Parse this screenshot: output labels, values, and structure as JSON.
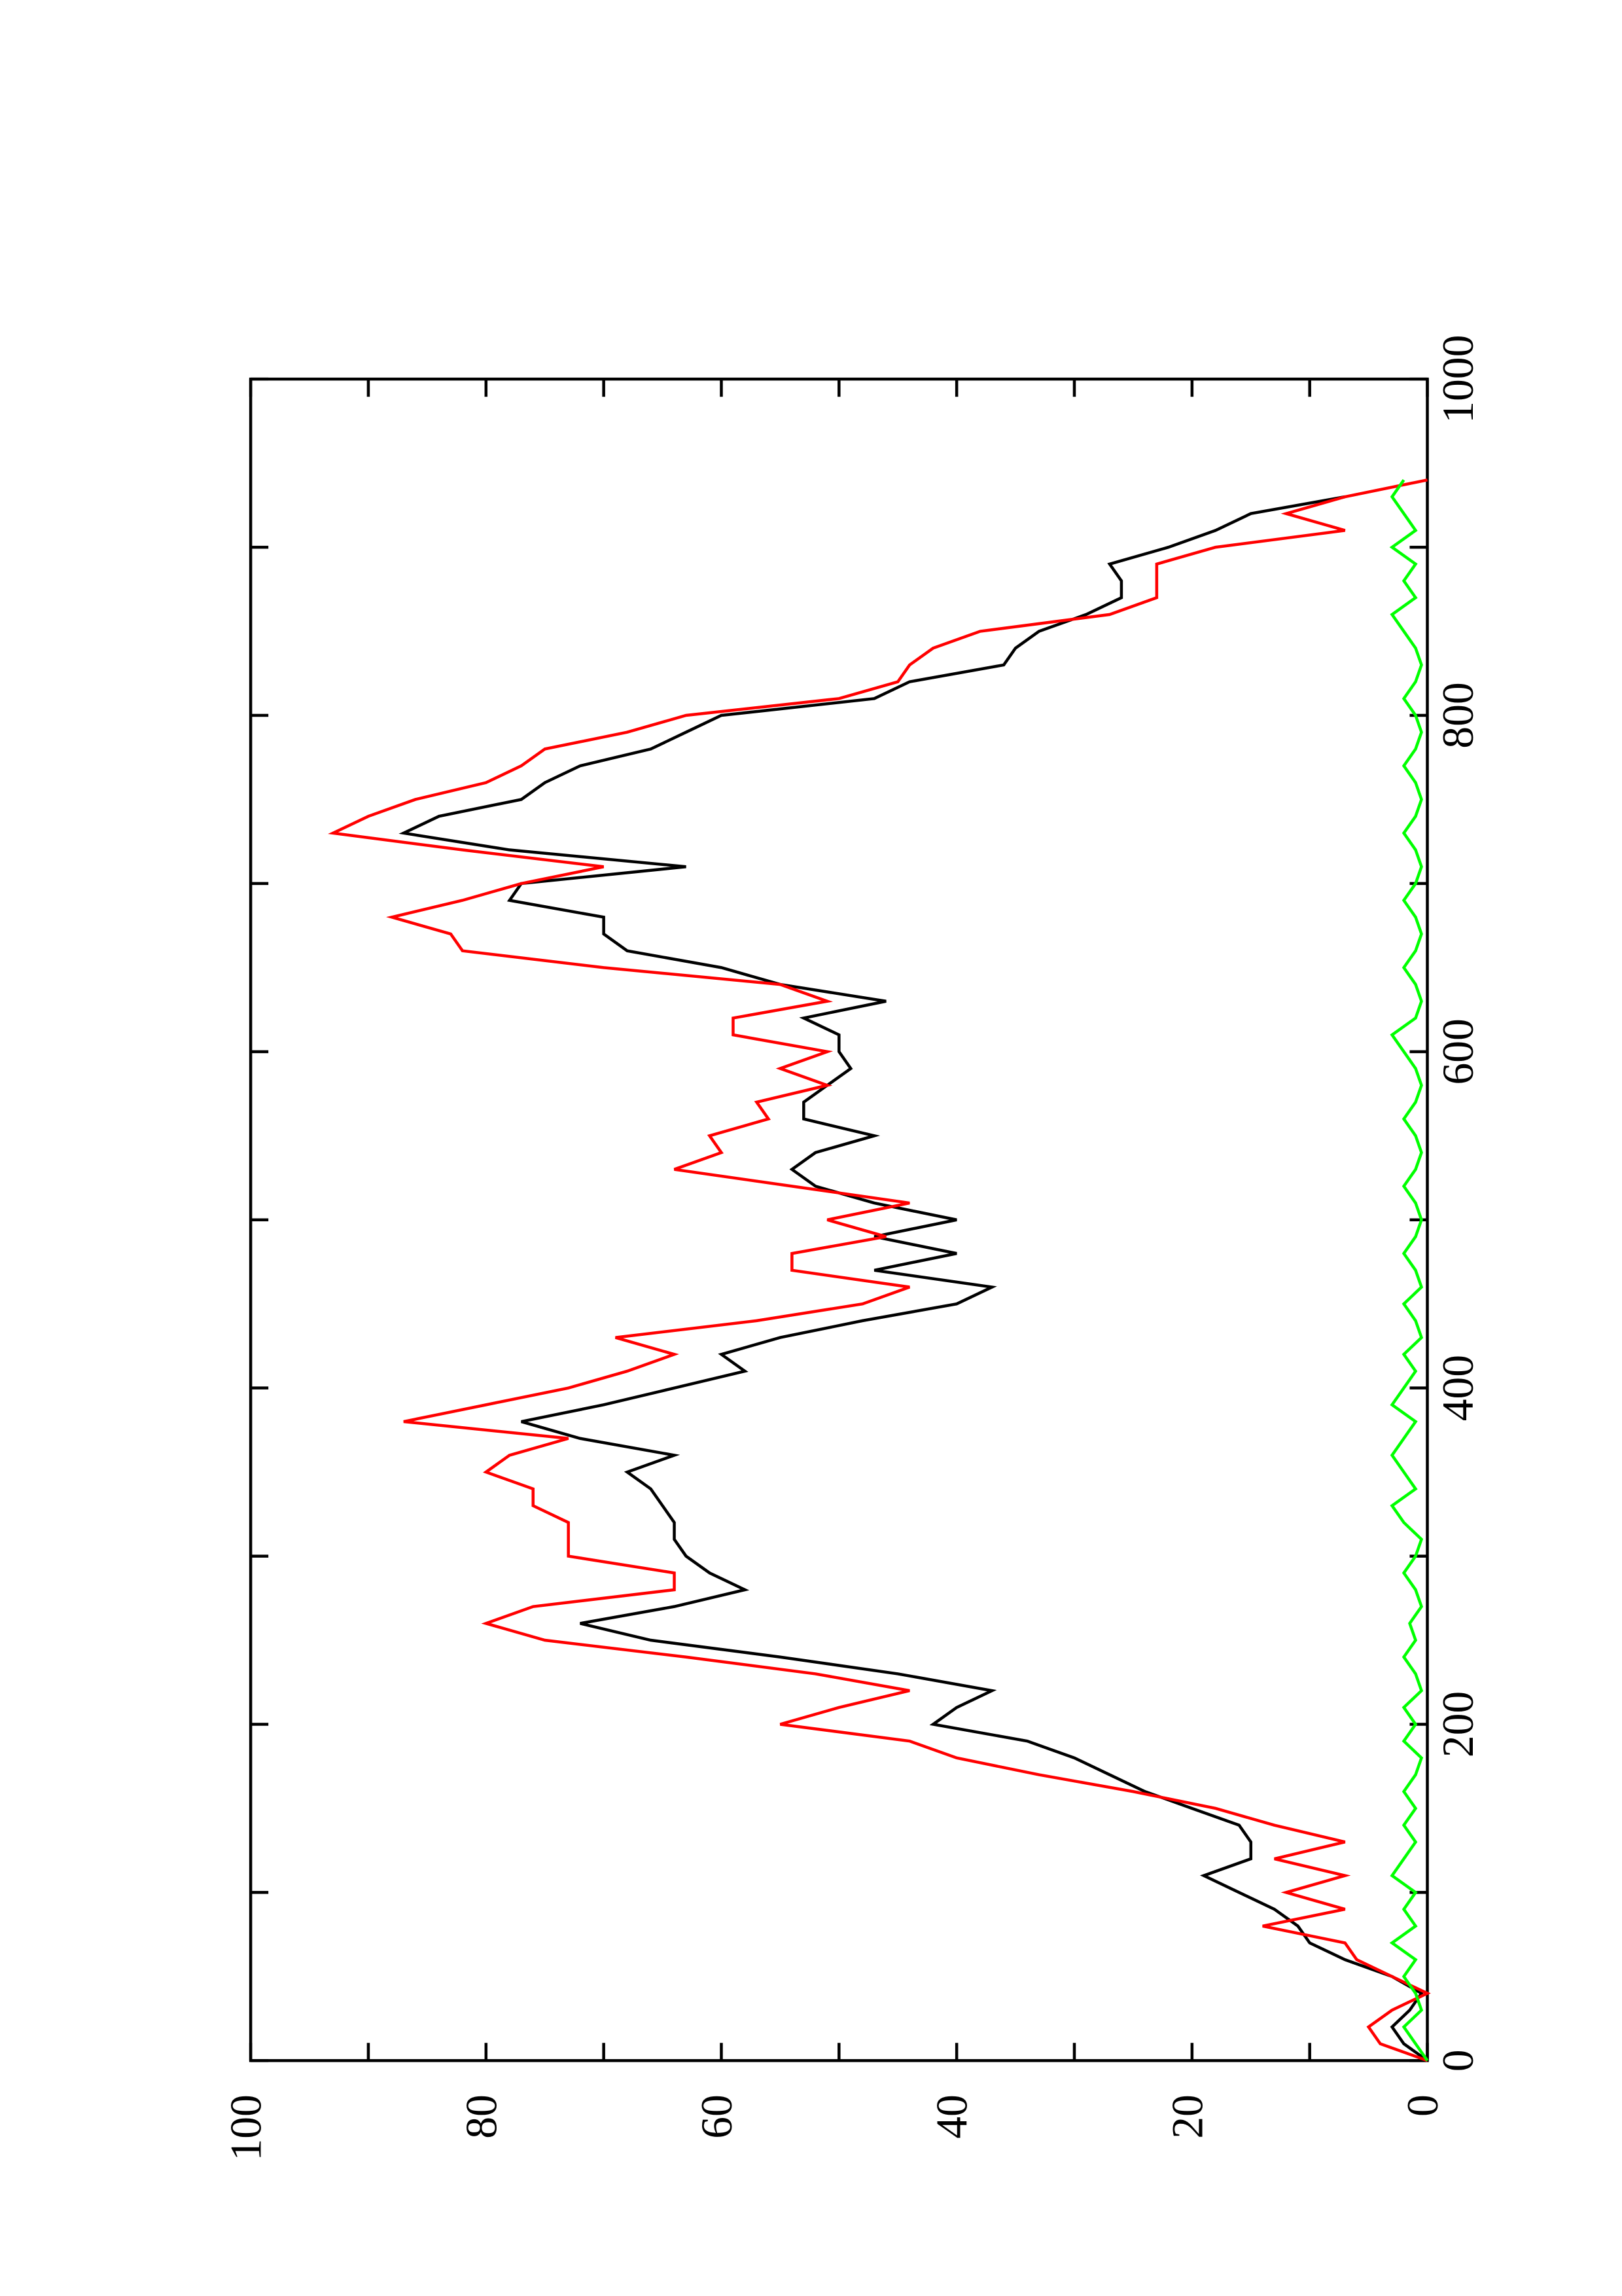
{
  "chart_data": {
    "type": "line",
    "x": [
      0,
      10,
      20,
      30,
      40,
      50,
      60,
      70,
      80,
      90,
      100,
      110,
      120,
      130,
      140,
      150,
      160,
      170,
      180,
      190,
      200,
      210,
      220,
      230,
      240,
      250,
      260,
      270,
      280,
      290,
      300,
      310,
      320,
      330,
      340,
      350,
      360,
      370,
      380,
      390,
      400,
      410,
      420,
      430,
      440,
      450,
      460,
      470,
      480,
      490,
      500,
      510,
      520,
      530,
      540,
      550,
      560,
      570,
      580,
      590,
      600,
      610,
      620,
      630,
      640,
      650,
      660,
      670,
      680,
      690,
      700,
      710,
      720,
      730,
      740,
      750,
      760,
      770,
      780,
      790,
      800,
      810,
      820,
      830,
      840,
      850,
      860,
      870,
      880,
      890,
      900,
      910,
      920,
      930,
      940
    ],
    "series": [
      {
        "color": "#000000",
        "values": [
          0,
          2,
          3,
          1.5,
          0.5,
          3,
          7,
          10,
          11,
          13,
          16,
          19,
          15,
          15,
          16,
          20,
          24,
          27,
          30,
          34,
          42,
          40,
          37,
          45,
          55,
          66,
          72,
          64,
          58,
          61,
          63,
          64,
          64,
          65,
          66,
          68,
          64,
          72,
          77,
          70,
          64,
          58,
          60,
          55,
          48,
          40,
          37,
          47,
          40,
          47,
          40,
          47,
          52,
          54,
          52,
          47,
          53,
          53,
          51,
          49,
          50,
          50,
          53,
          46,
          55,
          60,
          68,
          70,
          70,
          78,
          77,
          63,
          78,
          87,
          84,
          77,
          75,
          72,
          66,
          63,
          60,
          47,
          44,
          36,
          35,
          33,
          29,
          26,
          26,
          27,
          22,
          18,
          15,
          7,
          null
        ]
      },
      {
        "color": "#ff0000",
        "values": [
          0,
          4,
          5,
          3,
          0,
          3,
          6,
          7,
          14,
          7,
          12,
          7,
          13,
          7,
          13,
          18,
          25,
          33,
          40,
          44,
          55,
          50,
          44,
          52,
          63,
          75,
          80,
          76,
          64,
          64,
          73,
          73,
          73,
          76,
          76,
          80,
          78,
          73,
          87,
          80,
          73,
          68,
          64,
          69,
          57,
          48,
          44,
          54,
          54,
          46,
          51,
          44,
          54,
          64,
          60,
          61,
          56,
          57,
          51,
          55,
          51,
          59,
          59,
          51,
          55,
          70,
          82,
          83,
          88,
          82,
          77,
          70,
          82,
          93,
          90,
          86,
          80,
          77,
          75,
          68,
          63,
          50,
          45,
          44,
          42,
          38,
          27,
          23,
          23,
          23,
          18,
          7,
          12,
          7,
          0
        ]
      },
      {
        "color": "#00ff00",
        "values": [
          0,
          1,
          2,
          0.5,
          1,
          2,
          1,
          3,
          1,
          2,
          1,
          3,
          2,
          1,
          2,
          1,
          2,
          1,
          0.5,
          2,
          1,
          2,
          0.5,
          1,
          2,
          1,
          1.5,
          0.5,
          1,
          2,
          1,
          0.5,
          2,
          3,
          1,
          2,
          3,
          2,
          1,
          3,
          2,
          1,
          2,
          0.5,
          1,
          2,
          0.5,
          1,
          2,
          1,
          0.5,
          1,
          2,
          1,
          0.5,
          1,
          2,
          1,
          0.5,
          1,
          2,
          3,
          1,
          0.5,
          1,
          2,
          1,
          0.5,
          1,
          2,
          1,
          0.5,
          1,
          2,
          1,
          0.5,
          1,
          2,
          1,
          0.5,
          1,
          2,
          1,
          0.5,
          1,
          2,
          3,
          1,
          2,
          1,
          3,
          1,
          2,
          3,
          2
        ]
      }
    ],
    "xlim": [
      0,
      1000
    ],
    "xticks": [
      0,
      200,
      400,
      600,
      800,
      1000
    ],
    "x_minor_ticks": [
      100,
      300,
      500,
      700,
      900
    ],
    "ylim": [
      0,
      100
    ],
    "yticks": [
      0,
      20,
      40,
      60,
      80,
      100
    ],
    "y_minor_ticks": [
      10,
      30,
      50,
      70,
      90
    ],
    "rotated": true
  }
}
